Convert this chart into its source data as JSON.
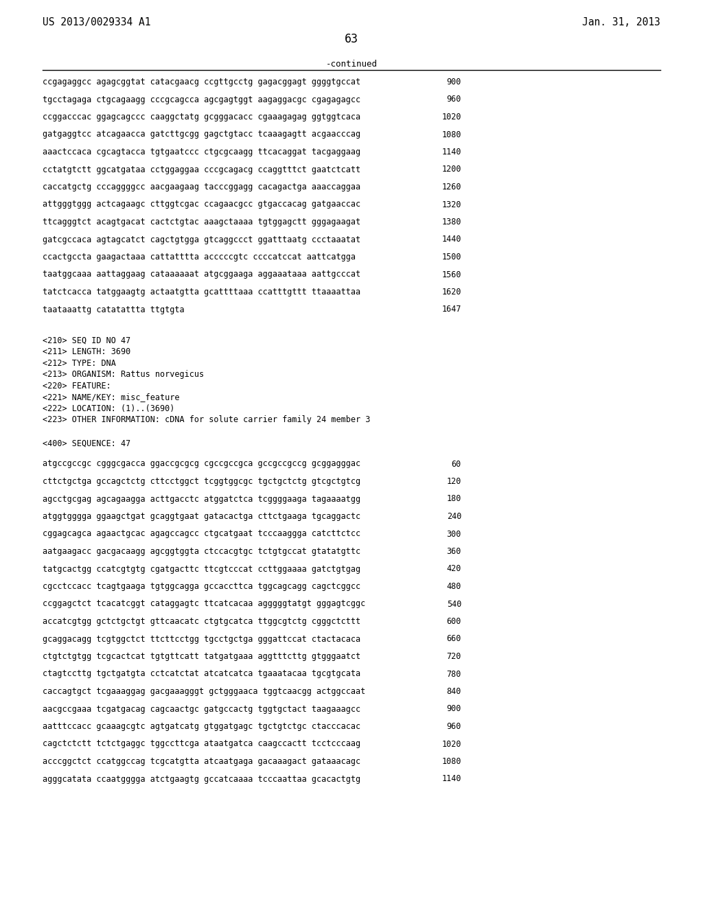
{
  "header_left": "US 2013/0029334 A1",
  "header_right": "Jan. 31, 2013",
  "page_number": "63",
  "continued_label": "-continued",
  "background_color": "#ffffff",
  "text_color": "#000000",
  "sequence_lines_top": [
    [
      "ccgagaggcc agagcggtat catacgaacg ccgttgcctg gagacggagt ggggtgccat",
      "900"
    ],
    [
      "tgcctagaga ctgcagaagg cccgcagcca agcgagtggt aagaggacgc cgagagagcc",
      "960"
    ],
    [
      "ccggacccac ggagcagccc caaggctatg gcgggacacc cgaaagagag ggtggtcaca",
      "1020"
    ],
    [
      "gatgaggtcc atcagaacca gatcttgcgg gagctgtacc tcaaagagtt acgaacccag",
      "1080"
    ],
    [
      "aaactccaca cgcagtacca tgtgaatccc ctgcgcaagg ttcacaggat tacgaggaag",
      "1140"
    ],
    [
      "cctatgtctt ggcatgataa cctggaggaa cccgcagacg ccaggtttct gaatctcatt",
      "1200"
    ],
    [
      "caccatgctg cccaggggcc aacgaagaag tacccggagg cacagactga aaaccaggaa",
      "1260"
    ],
    [
      "attgggtggg actcagaagc cttggtcgac ccagaacgcc gtgaccacag gatgaaccac",
      "1320"
    ],
    [
      "ttcagggtct acagtgacat cactctgtac aaagctaaaa tgtggagctt gggagaagat",
      "1380"
    ],
    [
      "gatcgccaca agtagcatct cagctgtgga gtcaggccct ggatttaatg ccctaaatat",
      "1440"
    ],
    [
      "ccactgccta gaagactaaa cattatttta acccccgtc ccccatccat aattcatgga",
      "1500"
    ],
    [
      "taatggcaaa aattaggaag cataaaaaat atgcggaaga aggaaataaa aattgcccat",
      "1560"
    ],
    [
      "tatctcacca tatggaagtg actaatgtta gcattttaaa ccatttgttt ttaaaattaa",
      "1620"
    ],
    [
      "taataaattg catatattta ttgtgta",
      "1647"
    ]
  ],
  "metadata_lines": [
    "<210> SEQ ID NO 47",
    "<211> LENGTH: 3690",
    "<212> TYPE: DNA",
    "<213> ORGANISM: Rattus norvegicus",
    "<220> FEATURE:",
    "<221> NAME/KEY: misc_feature",
    "<222> LOCATION: (1)..(3690)",
    "<223> OTHER INFORMATION: cDNA for solute carrier family 24 member 3"
  ],
  "sequence_label": "<400> SEQUENCE: 47",
  "sequence_lines_bottom": [
    [
      "atgccgccgc cgggcgacca ggaccgcgcg cgccgccgca gccgccgccg gcggagggac",
      "60"
    ],
    [
      "cttctgctga gccagctctg cttcctggct tcggtggcgc tgctgctctg gtcgctgtcg",
      "120"
    ],
    [
      "agcctgcgag agcagaagga acttgacctc atggatctca tcggggaaga tagaaaatgg",
      "180"
    ],
    [
      "atggtgggga ggaagctgat gcaggtgaat gatacactga cttctgaaga tgcaggactc",
      "240"
    ],
    [
      "cggagcagca agaactgcac agagccagcc ctgcatgaat tcccaaggga catcttctcc",
      "300"
    ],
    [
      "aatgaagacc gacgacaagg agcggtggta ctccacgtgc tctgtgccat gtatatgttc",
      "360"
    ],
    [
      "tatgcactgg ccatcgtgtg cgatgacttc ttcgtcccat ccttggaaaa gatctgtgag",
      "420"
    ],
    [
      "cgcctccacc tcagtgaaga tgtggcagga gccaccttca tggcagcagg cagctcggcc",
      "480"
    ],
    [
      "ccggagctct tcacatcggt cataggagtc ttcatcacaa agggggtatgt gggagtcggc",
      "540"
    ],
    [
      "accatcgtgg gctctgctgt gttcaacatc ctgtgcatca ttggcgtctg cgggctcttt",
      "600"
    ],
    [
      "gcaggacagg tcgtggctct ttcttcctgg tgcctgctga gggattccat ctactacaca",
      "660"
    ],
    [
      "ctgtctgtgg tcgcactcat tgtgttcatt tatgatgaaa aggtttcttg gtgggaatct",
      "720"
    ],
    [
      "ctagtccttg tgctgatgta cctcatctat atcatcatca tgaaatacaa tgcgtgcata",
      "780"
    ],
    [
      "caccagtgct tcgaaaggag gacgaaagggt gctgggaaca tggtcaacgg actggccaat",
      "840"
    ],
    [
      "aacgccgaaa tcgatgacag cagcaactgc gatgccactg tggtgctact taagaaagcc",
      "900"
    ],
    [
      "aatttccacc gcaaagcgtc agtgatcatg gtggatgagc tgctgtctgc ctacccacac",
      "960"
    ],
    [
      "cagctctctt tctctgaggc tggccttcga ataatgatca caagccactt tcctcccaag",
      "1020"
    ],
    [
      "acccggctct ccatggccag tcgcatgtta atcaatgaga gacaaagact gataaacagc",
      "1080"
    ],
    [
      "agggcatata ccaatgggga atctgaagtg gccatcaaaa tcccaattaa gcacactgtg",
      "1140"
    ]
  ]
}
